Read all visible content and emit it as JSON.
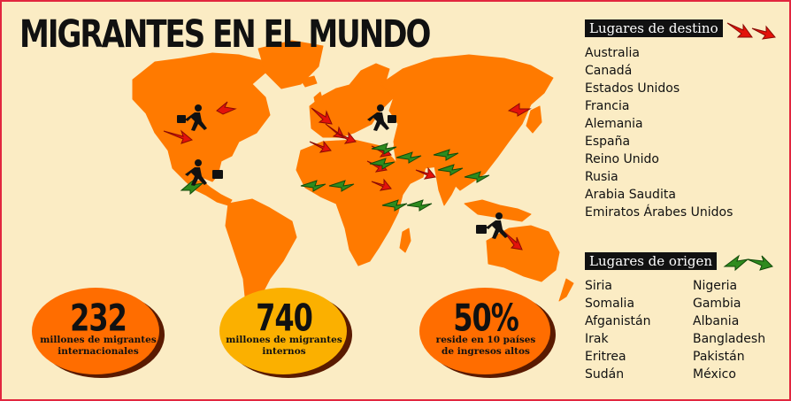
{
  "title": "MIGRANTES EN EL MUNDO",
  "destinations": {
    "heading": "Lugares de destino",
    "items": [
      "Australia",
      "Canadá",
      "Estados Unidos",
      "Francia",
      "Alemania",
      "España",
      "Reino Unido",
      "Rusia",
      "Arabia Saudita",
      "Emiratos Árabes Unidos"
    ]
  },
  "origins": {
    "heading": "Lugares de origen",
    "column1": [
      "Siria",
      "Somalia",
      "Afganistán",
      "Irak",
      "Eritrea",
      "Sudán"
    ],
    "column2": [
      "Nigeria",
      "Gambia",
      "Albania",
      "Bangladesh",
      "Pakistán",
      "México"
    ]
  },
  "stats": [
    {
      "value": "232",
      "label_line1": "millones de migrantes",
      "label_line2": "internacionales"
    },
    {
      "value": "740",
      "label_line1": "millones de migrantes",
      "label_line2": "internos"
    },
    {
      "value": "50%",
      "label_line1": "reside en 10 países",
      "label_line2": "de ingresos altos"
    }
  ],
  "colors": {
    "background": "#fbecc4",
    "map": "#ff7a00",
    "destination_arrow": "#e3120b",
    "origin_arrow": "#2e8b1e",
    "border": "#e2263f",
    "stat_circle_1": "#ff6d00",
    "stat_circle_2": "#fbb000",
    "stat_circle_3": "#ff6d00"
  },
  "icons": {
    "migrant": "running-person-with-suitcase-icon",
    "destination": "red-arrow-icon",
    "origin": "green-arrow-icon"
  }
}
